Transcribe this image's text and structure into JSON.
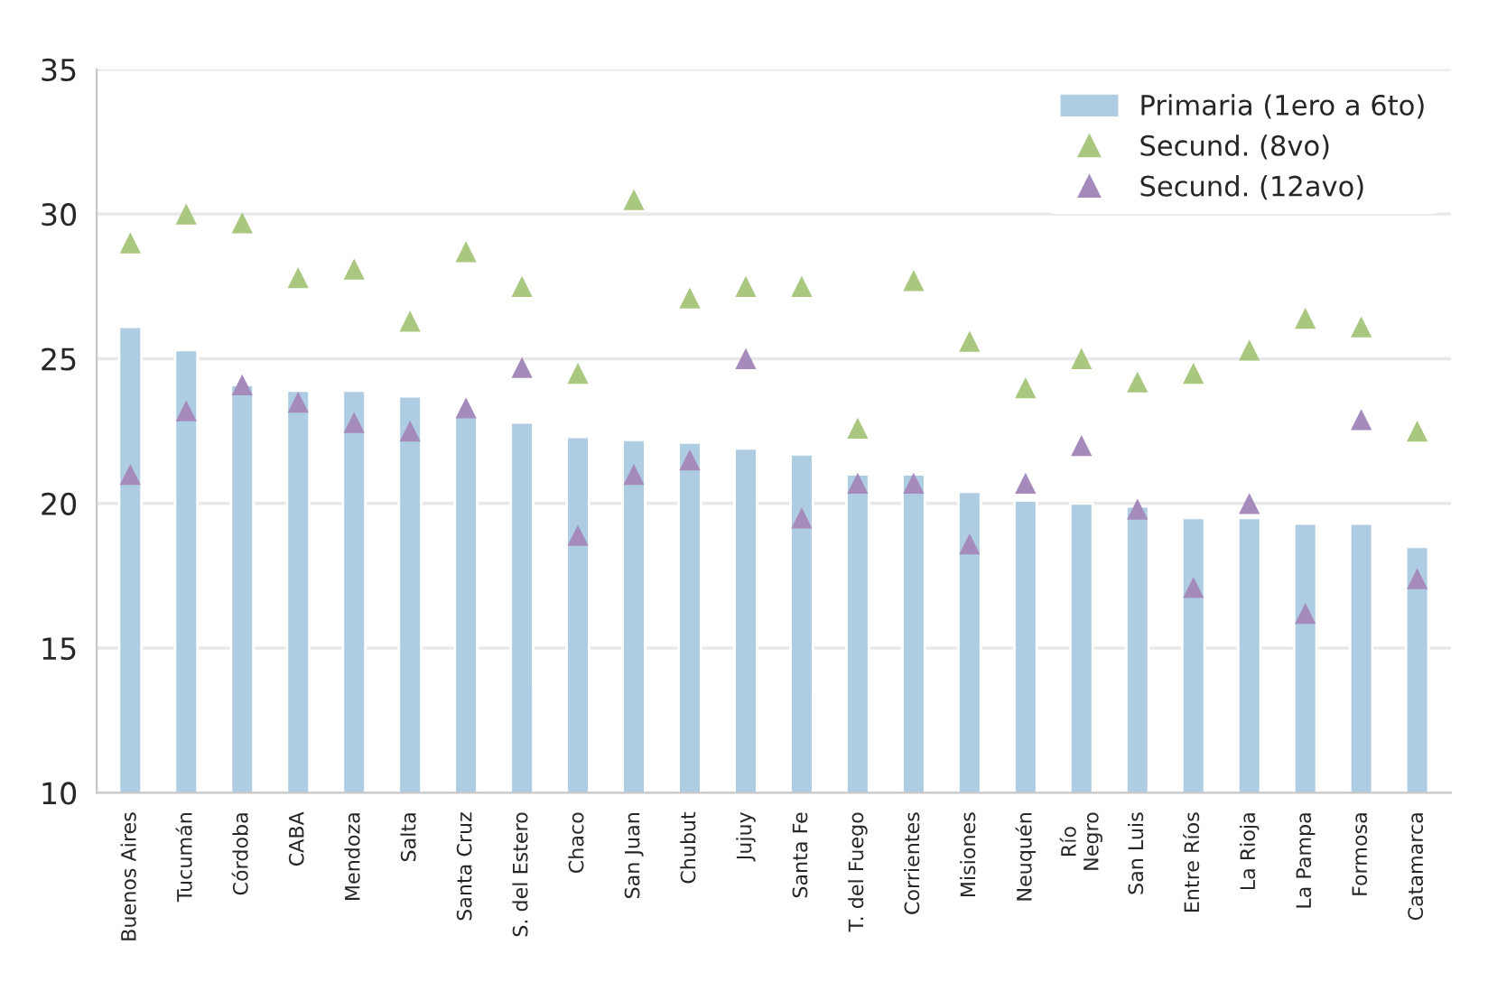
{
  "chart_data": {
    "type": "bar",
    "categories": [
      "Buenos Aires",
      "Tucumán",
      "Córdoba",
      "CABA",
      "Mendoza",
      "Salta",
      "Santa Cruz",
      "S. del Estero",
      "Chaco",
      "San Juan",
      "Chubut",
      "Jujuy",
      "Santa Fe",
      "T. del Fuego",
      "Corrientes",
      "Misiones",
      "Neuquén",
      "Río\nNegro",
      "San Luis",
      "Entre Ríos",
      "La Rioja",
      "La Pampa",
      "Formosa",
      "Catamarca"
    ],
    "series": [
      {
        "name": "Primaria (1ero a 6to)",
        "color": "#aecde3",
        "values": [
          26.1,
          25.3,
          24.1,
          23.9,
          23.9,
          23.7,
          23.0,
          22.8,
          22.3,
          22.2,
          22.1,
          21.9,
          21.7,
          21.0,
          21.0,
          20.4,
          20.1,
          20.0,
          19.9,
          19.5,
          19.5,
          19.3,
          19.3,
          18.5
        ]
      },
      {
        "name": "Secund. (8vo)",
        "type": "scatter",
        "marker": "triangle",
        "color": "#a9c77f",
        "values": [
          29.0,
          30.0,
          29.7,
          27.8,
          28.1,
          26.3,
          28.7,
          27.5,
          24.5,
          30.5,
          27.1,
          27.5,
          27.5,
          22.6,
          27.7,
          25.6,
          24.0,
          25.0,
          24.2,
          24.5,
          25.3,
          26.4,
          26.1,
          22.5
        ]
      },
      {
        "name": "Secund. (12avo)",
        "type": "scatter",
        "marker": "triangle",
        "color": "#a48bbb",
        "values": [
          21.0,
          23.2,
          24.1,
          23.5,
          22.8,
          22.5,
          23.3,
          24.7,
          18.9,
          21.0,
          21.5,
          25.0,
          19.5,
          20.7,
          20.7,
          18.6,
          20.7,
          22.0,
          19.8,
          17.1,
          20.0,
          16.2,
          22.9,
          17.4
        ]
      }
    ],
    "ylim": [
      10,
      35
    ],
    "yticks": [
      10,
      15,
      20,
      25,
      30,
      35
    ],
    "grid": "y",
    "legend": "top right"
  }
}
